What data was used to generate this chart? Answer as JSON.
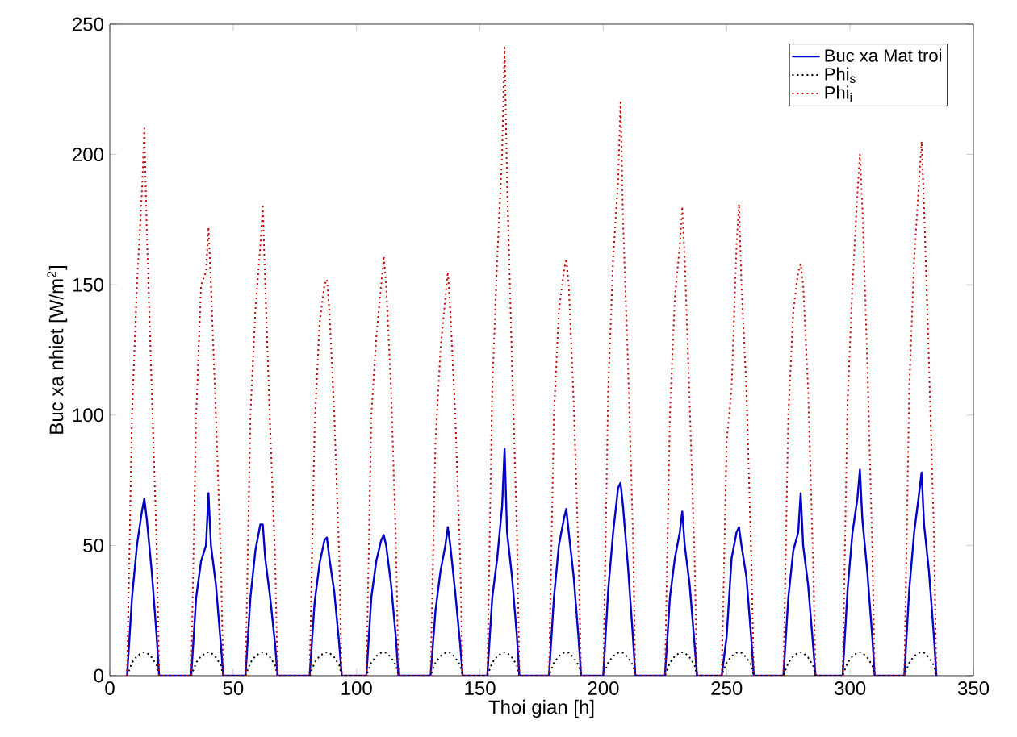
{
  "chart_data": {
    "type": "line",
    "xlabel": "Thoi gian [h]",
    "ylabel": "Buc xa nhiet [W/m$^{2}$]",
    "xlim": [
      0,
      350
    ],
    "ylim": [
      0,
      250
    ],
    "xticks": [
      0,
      50,
      100,
      150,
      200,
      250,
      300,
      350
    ],
    "yticks": [
      0,
      50,
      100,
      150,
      200,
      250
    ],
    "legend": "top right",
    "grid": false,
    "x": [
      7,
      9,
      11,
      13,
      14,
      15,
      17,
      19,
      20,
      33,
      35,
      37,
      39,
      40,
      41,
      43,
      45,
      46,
      55,
      57,
      59,
      61,
      62,
      63,
      65,
      67,
      68,
      81,
      83,
      85,
      87,
      88,
      89,
      91,
      93,
      94,
      104,
      106,
      108,
      110,
      111,
      112,
      114,
      116,
      117,
      130,
      132,
      134,
      136,
      137,
      138,
      140,
      142,
      143,
      153,
      155,
      157,
      159,
      160,
      161,
      163,
      165,
      166,
      178,
      180,
      182,
      184,
      185,
      186,
      188,
      190,
      191,
      200,
      202,
      204,
      206,
      207,
      208,
      210,
      212,
      213,
      225,
      227,
      229,
      231,
      232,
      233,
      235,
      237,
      238,
      248,
      250,
      252,
      254,
      255,
      256,
      258,
      260,
      261,
      273,
      275,
      277,
      279,
      280,
      281,
      283,
      285,
      286,
      297,
      299,
      301,
      303,
      304,
      305,
      307,
      309,
      310,
      322,
      324,
      326,
      328,
      329,
      330,
      332,
      334,
      335
    ],
    "series": [
      {
        "name": "Buc xa Mat troi",
        "color": "#0000cc",
        "line_style": "solid",
        "values": [
          0,
          30,
          50,
          63,
          68,
          60,
          40,
          15,
          0,
          0,
          30,
          44,
          50,
          70,
          50,
          35,
          12,
          0,
          0,
          30,
          48,
          58,
          58,
          45,
          30,
          12,
          0,
          0,
          28,
          43,
          52,
          53,
          45,
          32,
          12,
          0,
          0,
          30,
          44,
          52,
          54,
          50,
          35,
          14,
          0,
          0,
          25,
          40,
          50,
          57,
          50,
          32,
          12,
          0,
          0,
          30,
          45,
          65,
          87,
          55,
          38,
          15,
          0,
          0,
          30,
          50,
          60,
          64,
          55,
          38,
          14,
          0,
          0,
          33,
          55,
          72,
          74,
          65,
          42,
          15,
          0,
          0,
          30,
          45,
          55,
          63,
          50,
          35,
          12,
          0,
          0,
          15,
          45,
          55,
          57,
          50,
          38,
          14,
          0,
          0,
          30,
          48,
          55,
          70,
          50,
          35,
          12,
          0,
          0,
          33,
          55,
          68,
          79,
          60,
          40,
          15,
          0,
          0,
          33,
          55,
          70,
          78,
          58,
          40,
          15,
          0
        ]
      },
      {
        "name": "Phi$_{s}$",
        "color": "#000000",
        "line_style": "dotted",
        "values": [
          0,
          5,
          7.5,
          8.8,
          9,
          8.8,
          7,
          4,
          0,
          0,
          5,
          7.5,
          8.8,
          9,
          8.8,
          7,
          4,
          0,
          0,
          5,
          7.5,
          8.8,
          9,
          8.8,
          7,
          4,
          0,
          0,
          5,
          7.5,
          8.8,
          9,
          8.8,
          7,
          4,
          0,
          0,
          5,
          7.5,
          8.8,
          9,
          8.8,
          7,
          4,
          0,
          0,
          5,
          7.5,
          8.8,
          9,
          8.8,
          7,
          4,
          0,
          0,
          5,
          7.5,
          8.8,
          9,
          8.8,
          7,
          4,
          0,
          0,
          5,
          7.5,
          8.8,
          9,
          8.8,
          7,
          4,
          0,
          0,
          5,
          7.5,
          8.8,
          9,
          8.8,
          7,
          4,
          0,
          0,
          5,
          7.5,
          8.8,
          9,
          8.8,
          7,
          4,
          0,
          0,
          5,
          7.5,
          8.8,
          9,
          8.8,
          7,
          4,
          0,
          0,
          5,
          7.5,
          8.8,
          9,
          8.8,
          7,
          4,
          0,
          0,
          5,
          7.5,
          8.8,
          9,
          8.8,
          7,
          4,
          0,
          0,
          5,
          7.5,
          8.8,
          9,
          8.8,
          7,
          4,
          0
        ]
      },
      {
        "name": "Phi$_{i}$",
        "color": "#cc0000",
        "line_style": "dotted",
        "values": [
          0,
          100,
          150,
          185,
          210,
          170,
          110,
          50,
          0,
          0,
          100,
          150,
          155,
          172,
          150,
          100,
          45,
          0,
          0,
          100,
          140,
          165,
          180,
          150,
          95,
          45,
          0,
          0,
          95,
          135,
          150,
          152,
          140,
          100,
          45,
          0,
          0,
          100,
          130,
          150,
          161,
          150,
          110,
          50,
          0,
          0,
          90,
          125,
          145,
          155,
          140,
          100,
          45,
          0,
          0,
          110,
          160,
          200,
          241,
          190,
          120,
          55,
          0,
          0,
          100,
          140,
          155,
          160,
          150,
          105,
          45,
          0,
          0,
          110,
          160,
          190,
          220,
          175,
          120,
          55,
          0,
          0,
          100,
          145,
          165,
          180,
          160,
          105,
          45,
          0,
          0,
          90,
          110,
          165,
          181,
          150,
          110,
          45,
          0,
          0,
          100,
          140,
          155,
          158,
          150,
          110,
          45,
          0,
          0,
          105,
          150,
          185,
          200,
          180,
          120,
          50,
          0,
          0,
          110,
          160,
          190,
          205,
          180,
          120,
          55,
          0
        ]
      }
    ]
  }
}
